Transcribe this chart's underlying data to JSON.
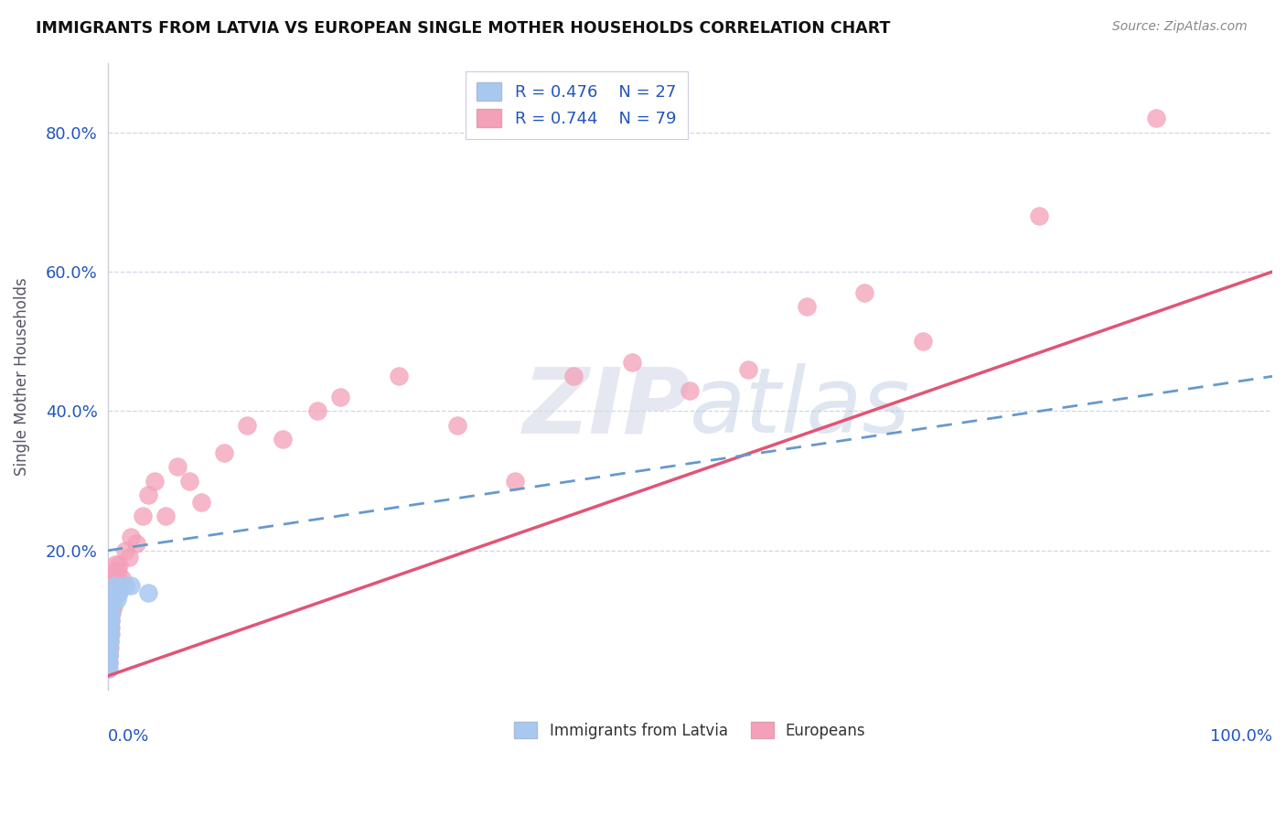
{
  "title": "IMMIGRANTS FROM LATVIA VS EUROPEAN SINGLE MOTHER HOUSEHOLDS CORRELATION CHART",
  "source": "Source: ZipAtlas.com",
  "ylabel": "Single Mother Households",
  "xlim": [
    0,
    100
  ],
  "ylim": [
    0,
    90
  ],
  "yticks": [
    20,
    40,
    60,
    80
  ],
  "ytick_labels": [
    "20.0%",
    "40.0%",
    "60.0%",
    "80.0%"
  ],
  "legend_r1": "R = 0.476",
  "legend_n1": "N = 27",
  "legend_r2": "R = 0.744",
  "legend_n2": "N = 79",
  "color_latvia": "#A8C8F0",
  "color_europe": "#F4A0B8",
  "color_latvia_line": "#6699CC",
  "color_europe_line": "#E05575",
  "color_legend_text": "#2255BB",
  "watermark_color": "#D0D8E8",
  "lv_line_x0": 0,
  "lv_line_y0": 20,
  "lv_line_x1": 100,
  "lv_line_y1": 45,
  "eu_line_x0": 0,
  "eu_line_y0": 2,
  "eu_line_x1": 100,
  "eu_line_y1": 60,
  "lv_scatter_x": [
    0.05,
    0.06,
    0.07,
    0.08,
    0.09,
    0.1,
    0.11,
    0.12,
    0.13,
    0.14,
    0.15,
    0.16,
    0.18,
    0.2,
    0.22,
    0.25,
    0.28,
    0.3,
    0.35,
    0.4,
    0.5,
    0.6,
    0.8,
    1.0,
    1.5,
    2.0,
    3.5
  ],
  "lv_scatter_y": [
    4,
    6,
    5,
    7,
    3,
    8,
    5,
    4,
    6,
    5,
    8,
    7,
    9,
    10,
    8,
    12,
    10,
    11,
    12,
    13,
    14,
    15,
    13,
    14,
    15,
    15,
    14
  ],
  "eu_scatter_x": [
    0.03,
    0.04,
    0.05,
    0.05,
    0.06,
    0.06,
    0.07,
    0.07,
    0.08,
    0.08,
    0.09,
    0.1,
    0.1,
    0.11,
    0.12,
    0.12,
    0.13,
    0.14,
    0.15,
    0.15,
    0.16,
    0.17,
    0.18,
    0.18,
    0.2,
    0.2,
    0.22,
    0.23,
    0.25,
    0.25,
    0.27,
    0.28,
    0.3,
    0.3,
    0.32,
    0.35,
    0.35,
    0.38,
    0.4,
    0.42,
    0.45,
    0.48,
    0.5,
    0.55,
    0.6,
    0.65,
    0.7,
    0.8,
    0.9,
    1.0,
    1.2,
    1.5,
    1.8,
    2.0,
    2.5,
    3.0,
    3.5,
    4.0,
    5.0,
    6.0,
    7.0,
    8.0,
    10.0,
    12.0,
    15.0,
    18.0,
    20.0,
    25.0,
    30.0,
    35.0,
    40.0,
    45.0,
    50.0,
    55.0,
    60.0,
    65.0,
    70.0,
    80.0,
    90.0
  ],
  "eu_scatter_y": [
    4,
    3,
    5,
    8,
    6,
    4,
    7,
    5,
    8,
    6,
    5,
    7,
    4,
    6,
    8,
    9,
    7,
    10,
    8,
    6,
    9,
    7,
    10,
    8,
    9,
    11,
    10,
    12,
    8,
    11,
    10,
    13,
    9,
    12,
    14,
    11,
    13,
    15,
    14,
    16,
    13,
    12,
    15,
    17,
    14,
    18,
    16,
    15,
    17,
    18,
    16,
    20,
    19,
    22,
    21,
    25,
    28,
    30,
    25,
    32,
    30,
    27,
    34,
    38,
    36,
    40,
    42,
    45,
    38,
    30,
    45,
    47,
    43,
    46,
    55,
    57,
    50,
    68,
    82
  ]
}
